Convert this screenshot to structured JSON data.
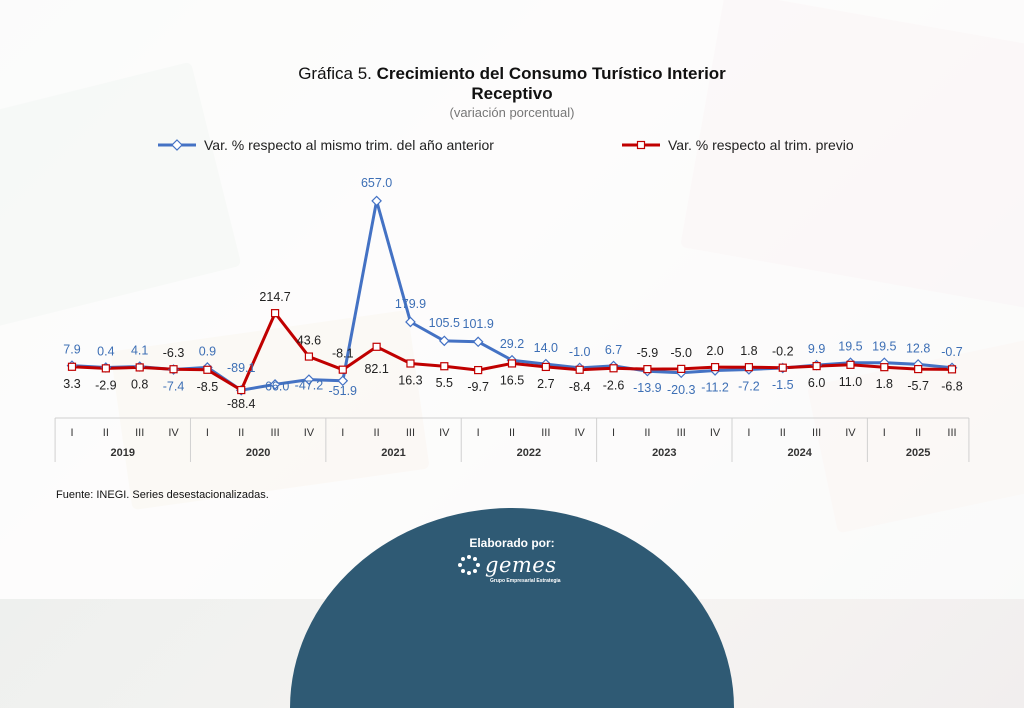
{
  "title": {
    "prefix": "Gráfica 5.",
    "line1": "Crecimiento del Consumo Turístico Interior",
    "line2": "Receptivo",
    "subtitle": "(variación porcentual)"
  },
  "source": "Fuente: INEGI. Series desestacionalizadas.",
  "footer": {
    "label": "Elaborado por:",
    "logo_text": "gemes",
    "logo_tagline": "Grupo Empresarial Estrategia"
  },
  "colors": {
    "yoy": "#4472c4",
    "qoq": "#c00000"
  },
  "chart_data": {
    "type": "line",
    "legend_position": "top",
    "x": [
      "I",
      "II",
      "III",
      "IV",
      "I",
      "II",
      "III",
      "IV",
      "I",
      "II",
      "III",
      "IV",
      "I",
      "II",
      "III",
      "IV",
      "I",
      "II",
      "III",
      "IV",
      "I",
      "II",
      "III",
      "IV",
      "I",
      "II",
      "III"
    ],
    "years": [
      {
        "label": "2019",
        "quarters": 4
      },
      {
        "label": "2020",
        "quarters": 4
      },
      {
        "label": "2021",
        "quarters": 4
      },
      {
        "label": "2022",
        "quarters": 4
      },
      {
        "label": "2023",
        "quarters": 4
      },
      {
        "label": "2024",
        "quarters": 4
      },
      {
        "label": "2025",
        "quarters": 3
      }
    ],
    "series": [
      {
        "name": "Var. % respecto al mismo trim. del año anterior",
        "values": [
          7.9,
          0.4,
          4.1,
          -7.4,
          0.9,
          -89.1,
          -66.0,
          -47.2,
          -51.9,
          657.0,
          179.9,
          105.5,
          101.9,
          29.2,
          14.0,
          -1.0,
          6.7,
          -13.9,
          -20.3,
          -11.2,
          -7.2,
          -1.5,
          9.9,
          19.5,
          19.5,
          12.8,
          -0.7
        ],
        "labels": [
          "7.9",
          "0.4",
          "4.1",
          "-7.4",
          "0.9",
          "-89.1",
          "-66.0",
          "-47.2",
          "-51.9",
          "657.0",
          "179.9",
          "105.5",
          "101.9",
          "29.2",
          "14.0",
          "-1.0",
          "6.7",
          "-13.9",
          "-20.3",
          "-11.2",
          "-7.2",
          "-1.5",
          "9.9",
          "19.5",
          "19.5",
          "12.8",
          "-0.7"
        ]
      },
      {
        "name": "Var. % respecto al trim. previo",
        "values": [
          3.3,
          -2.9,
          0.8,
          -6.3,
          -8.5,
          -88.4,
          214.7,
          43.6,
          -8.1,
          82.1,
          16.3,
          5.5,
          -9.7,
          16.5,
          2.7,
          -8.4,
          -2.6,
          -5.9,
          -5.0,
          2.0,
          1.8,
          -0.2,
          6.0,
          11.0,
          1.8,
          -5.7,
          -6.8
        ],
        "labels": [
          "3.3",
          "-2.9",
          "0.8",
          "-6.3",
          "-8.5",
          "-88.4",
          "214.7",
          "43.6",
          "-8.1",
          "82.1",
          "16.3",
          "5.5",
          "-9.7",
          "16.5",
          "2.7",
          "-8.4",
          "-2.6",
          "-5.9",
          "-5.0",
          "2.0",
          "1.8",
          "-0.2",
          "6.0",
          "11.0",
          "1.8",
          "-5.7",
          "-6.8"
        ]
      }
    ],
    "ylim": [
      -100,
      700
    ],
    "grid": false
  }
}
